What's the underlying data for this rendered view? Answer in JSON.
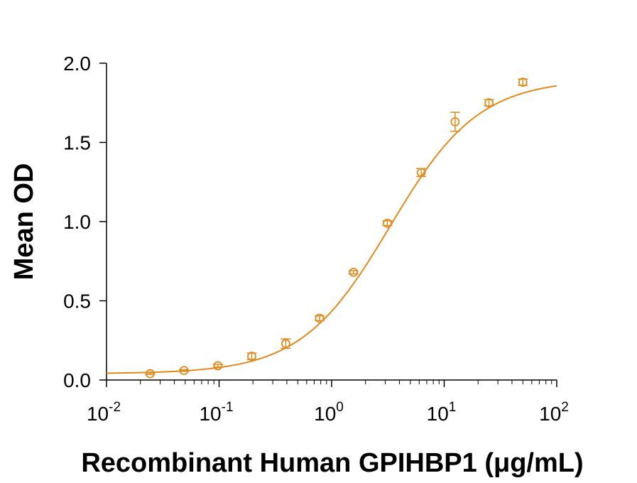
{
  "chart_data": {
    "type": "scatter",
    "title": "",
    "xlabel": "Recombinant Human GPIHBP1 (μg/mL)",
    "ylabel": "Mean OD",
    "x_scale": "log",
    "xlim": [
      0.01,
      100
    ],
    "ylim": [
      0,
      2.0
    ],
    "grid": false,
    "legend": "none",
    "color": "#E08A1E",
    "x_ticks": [
      {
        "base": "10",
        "exp": "-2"
      },
      {
        "base": "10",
        "exp": "-1"
      },
      {
        "base": "10",
        "exp": "0"
      },
      {
        "base": "10",
        "exp": "1"
      },
      {
        "base": "10",
        "exp": "2"
      }
    ],
    "y_ticks": [
      "0.0",
      "0.5",
      "1.0",
      "1.5",
      "2.0"
    ],
    "points": [
      {
        "x": 0.0244,
        "y": 0.04,
        "err": 0.005
      },
      {
        "x": 0.0488,
        "y": 0.06,
        "err": 0.005
      },
      {
        "x": 0.0977,
        "y": 0.09,
        "err": 0.008
      },
      {
        "x": 0.195,
        "y": 0.15,
        "err": 0.02
      },
      {
        "x": 0.391,
        "y": 0.23,
        "err": 0.03
      },
      {
        "x": 0.781,
        "y": 0.39,
        "err": 0.015
      },
      {
        "x": 1.5625,
        "y": 0.68,
        "err": 0.01
      },
      {
        "x": 3.125,
        "y": 0.99,
        "err": 0.015
      },
      {
        "x": 6.25,
        "y": 1.31,
        "err": 0.025
      },
      {
        "x": 12.5,
        "y": 1.63,
        "err": 0.06
      },
      {
        "x": 25,
        "y": 1.75,
        "err": 0.02
      },
      {
        "x": 50,
        "y": 1.88,
        "err": 0.02
      }
    ],
    "fit": {
      "model": "4PL",
      "bottom": 0.04,
      "top": 1.9,
      "ec50": 3.3,
      "hill": 1.1
    }
  }
}
